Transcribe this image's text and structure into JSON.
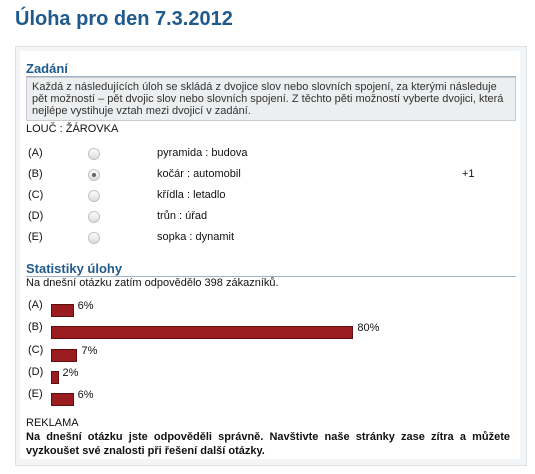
{
  "header": {
    "title": "Úloha pro den 7.3.2012"
  },
  "task": {
    "heading": "Zadání",
    "instruction": "Každá z následujících úloh se skládá z dvojice slov nebo slovních spojení, za kterými následuje pět možností – pět dvojic slov nebo slovních spojení. Z těchto pěti možností vyberte dvojici, která nejlépe vystihuje vztah mezi dvojicí v zadání.",
    "question": "LOUČ : ŽÁROVKA",
    "options": [
      {
        "letter": "(A)",
        "text": "pyramida : budova"
      },
      {
        "letter": "(B)",
        "text": "kočár : automobil"
      },
      {
        "letter": "(C)",
        "text": "křídla : letadlo"
      },
      {
        "letter": "(D)",
        "text": "trůn : úřad"
      },
      {
        "letter": "(E)",
        "text": "sopka : dynamit"
      }
    ],
    "score": "+1"
  },
  "stats": {
    "heading": "Statistiky úlohy",
    "summary": "Na dnešní otázku zatím odpovědělo 398 zákazníků.",
    "categories": [
      "(A)",
      "(B)",
      "(C)",
      "(D)",
      "(E)"
    ],
    "values": [
      6,
      80,
      7,
      2,
      6
    ],
    "value_labels": [
      "6%",
      "80%",
      "7%",
      "2%",
      "6%"
    ]
  },
  "ad": {
    "heading": "REKLAMA",
    "text": "Na dnešní otázku jste odpověděli správně. Navštivte naše stránky zase zítra a můžete vyzkoušet své znalosti při řešení další otázky."
  }
}
